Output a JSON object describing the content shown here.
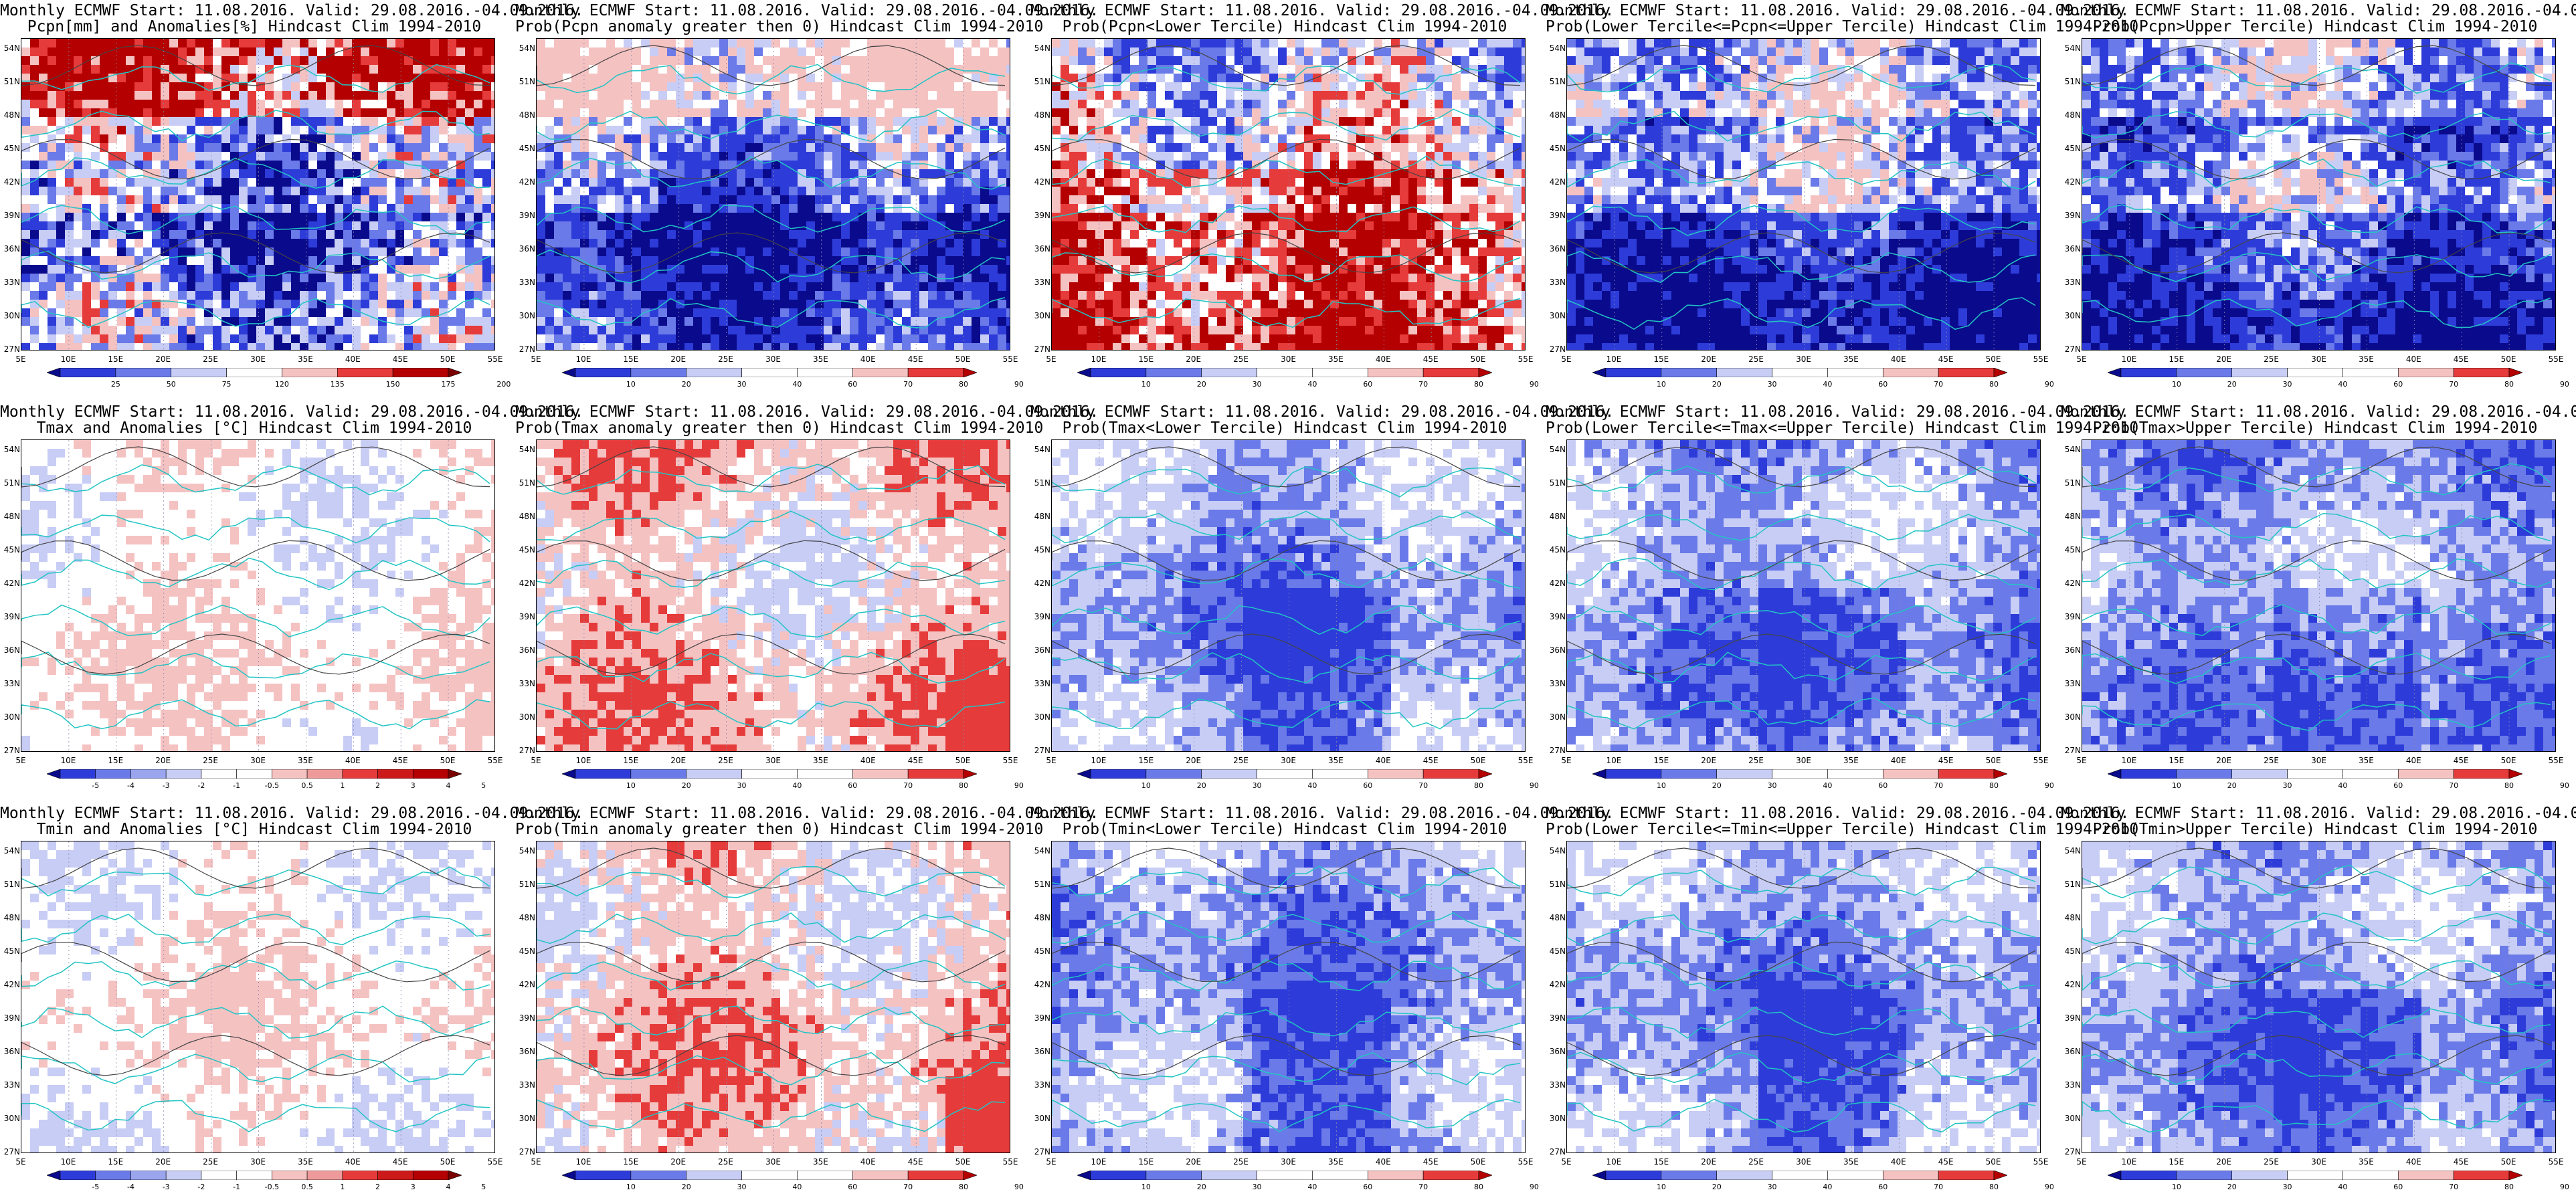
{
  "header_line": "Monthly ECMWF Start: 11.08.2016. Valid: 29.08.2016.-04.09.2016.",
  "lat_labels": [
    "54N",
    "51N",
    "48N",
    "45N",
    "42N",
    "39N",
    "36N",
    "33N",
    "30N",
    "27N"
  ],
  "lon_labels": [
    "5E",
    "10E",
    "15E",
    "20E",
    "25E",
    "30E",
    "35E",
    "40E",
    "45E",
    "50E",
    "55E"
  ],
  "colorbars": {
    "pcpn": [
      "25",
      "50",
      "75",
      "120",
      "135",
      "150",
      "175",
      "200"
    ],
    "prob": [
      "10",
      "20",
      "30",
      "40",
      "60",
      "70",
      "80",
      "90"
    ],
    "anom": [
      "-5",
      "-4",
      "-3",
      "-2",
      "-1",
      "-0.5",
      "0.5",
      "1",
      "2",
      "3",
      "4",
      "5"
    ]
  },
  "colors": {
    "dark_blue": "#0a0a8c",
    "blue": "#2d3cd8",
    "mid_blue": "#6a7ae8",
    "light_blue": "#c8cdf5",
    "white": "#ffffff",
    "light_red": "#f5c2c2",
    "red": "#e63b3b",
    "dark_red": "#b40000",
    "coast": "#22c4c4",
    "contour": "#444444"
  },
  "panels": [
    {
      "id": "pcpn-anom",
      "subtitle": "Pcpn[mm] and Anomalies[%] Hindcast Clim 1994-2010",
      "cbar": "pcpn",
      "scheme": "pcpn"
    },
    {
      "id": "pcpn-prob-gt0",
      "subtitle": "Prob(Pcpn anomaly greater then 0) Hindcast Clim 1994-2010",
      "cbar": "prob",
      "scheme": "blue"
    },
    {
      "id": "pcpn-prob-lower",
      "subtitle": "Prob(Pcpn<Lower Tercile) Hindcast Clim 1994-2010",
      "cbar": "prob",
      "scheme": "red_south"
    },
    {
      "id": "pcpn-prob-middle",
      "subtitle": "Prob(Lower Tercile<=Pcpn<=Upper Tercile) Hindcast Clim 1994-2010",
      "cbar": "prob",
      "scheme": "blue"
    },
    {
      "id": "pcpn-prob-upper",
      "subtitle": "Prob(Pcpn>Upper Tercile) Hindcast Clim 1994-2010",
      "cbar": "prob",
      "scheme": "blue"
    },
    {
      "id": "tmax-anom",
      "subtitle": "Tmax and Anomalies [°C] Hindcast Clim 1994-2010",
      "cbar": "anom",
      "scheme": "light_mixed"
    },
    {
      "id": "tmax-prob-gt0",
      "subtitle": "Prob(Tmax anomaly greater then 0) Hindcast Clim 1994-2010",
      "cbar": "prob",
      "scheme": "light_red"
    },
    {
      "id": "tmax-prob-lower",
      "subtitle": "Prob(Tmax<Lower Tercile) Hindcast Clim 1994-2010",
      "cbar": "prob",
      "scheme": "mixed_blue"
    },
    {
      "id": "tmax-prob-middle",
      "subtitle": "Prob(Lower Tercile<=Tmax<=Upper Tercile) Hindcast Clim 1994-2010",
      "cbar": "prob",
      "scheme": "mixed_blue"
    },
    {
      "id": "tmax-prob-upper",
      "subtitle": "Prob(Tmax>Upper Tercile) Hindcast Clim 1994-2010",
      "cbar": "prob",
      "scheme": "mixed_blue"
    },
    {
      "id": "tmin-anom",
      "subtitle": "Tmin and Anomalies [°C] Hindcast Clim 1994-2010",
      "cbar": "anom",
      "scheme": "light_mixed"
    },
    {
      "id": "tmin-prob-gt0",
      "subtitle": "Prob(Tmin anomaly greater then 0) Hindcast Clim 1994-2010",
      "cbar": "prob",
      "scheme": "light_red"
    },
    {
      "id": "tmin-prob-lower",
      "subtitle": "Prob(Tmin<Lower Tercile) Hindcast Clim 1994-2010",
      "cbar": "prob",
      "scheme": "mixed_blue"
    },
    {
      "id": "tmin-prob-middle",
      "subtitle": "Prob(Lower Tercile<=Tmin<=Upper Tercile) Hindcast Clim 1994-2010",
      "cbar": "prob",
      "scheme": "mixed_blue"
    },
    {
      "id": "tmin-prob-upper",
      "subtitle": "Prob(Tmin>Upper Tercile) Hindcast Clim 1994-2010",
      "cbar": "prob",
      "scheme": "mixed_blue"
    }
  ]
}
